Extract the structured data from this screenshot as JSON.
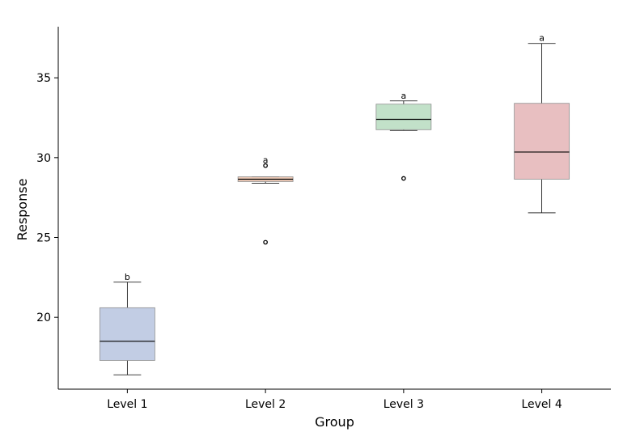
{
  "chart_data": {
    "type": "box",
    "title": "",
    "xlabel": "Group",
    "ylabel": "Response",
    "ylim": [
      15.5,
      38.2
    ],
    "yticks": [
      20,
      25,
      30,
      35
    ],
    "grid": false,
    "categories": [
      "Level 1",
      "Level 2",
      "Level 3",
      "Level 4"
    ],
    "boxes": [
      {
        "category": "Level 1",
        "whisker_low": 16.4,
        "q1": 17.3,
        "median": 18.5,
        "q3": 20.6,
        "whisker_high": 22.2,
        "outliers": [],
        "letter": "b",
        "color": "#c2cde4"
      },
      {
        "category": "Level 2",
        "whisker_low": 28.4,
        "q1": 28.5,
        "median": 28.65,
        "q3": 28.8,
        "whisker_high": 28.8,
        "outliers": [
          29.5,
          24.7
        ],
        "letter": "a",
        "color": "#efcbb8"
      },
      {
        "category": "Level 3",
        "whisker_low": 31.7,
        "q1": 31.75,
        "median": 32.4,
        "q3": 33.35,
        "whisker_high": 33.55,
        "outliers": [
          28.7
        ],
        "letter": "a",
        "color": "#c2e1c9"
      },
      {
        "category": "Level 4",
        "whisker_low": 26.55,
        "q1": 28.65,
        "median": 30.35,
        "q3": 33.4,
        "whisker_high": 37.15,
        "outliers": [],
        "letter": "a",
        "color": "#e8bfc1"
      }
    ]
  }
}
